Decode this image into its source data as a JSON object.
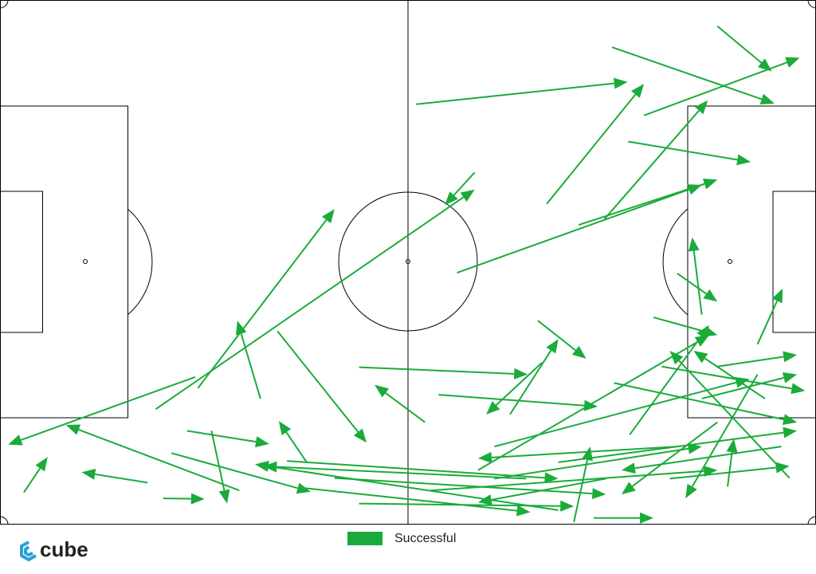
{
  "chart_data": {
    "type": "pass-map",
    "xlim": [
      0,
      120
    ],
    "ylim": [
      0,
      80
    ],
    "y_inverted": true,
    "series": [
      {
        "name": "Successful",
        "color": "#1aab3a",
        "x_start": [
          3.5,
          28.7,
          35.2,
          21.7,
          24.0,
          31.1,
          27.5,
          25.2,
          22.9,
          29.1,
          38.3,
          69.8,
          40.8,
          45.1,
          61.2,
          80.4,
          90.0,
          94.7,
          105.5,
          92.4,
          88.9,
          85.1,
          67.2,
          52.8,
          79.1,
          103.2,
          99.6,
          111.4,
          96.1,
          62.5,
          82.1,
          77.4,
          44.5,
          84.4,
          87.3,
          98.5,
          82.1,
          103.2,
          105.5,
          72.7,
          75.0,
          70.3,
          64.5,
          105.5,
          89.1,
          99.6,
          72.7,
          90.3,
          79.7,
          92.6,
          111.4,
          112.5,
          97.3,
          114.9,
          42.2,
          49.2,
          52.8,
          63.3,
          107.0,
          116.1
        ],
        "y_start": [
          75.1,
          57.5,
          74.8,
          73.6,
          76.0,
          65.7,
          65.7,
          69.1,
          62.4,
          59.2,
          60.8,
          26.3,
          50.5,
          70.5,
          15.9,
          31.1,
          7.2,
          17.6,
          4.0,
          21.6,
          33.4,
          34.3,
          41.6,
          56.0,
          48.9,
          48.0,
          41.7,
          52.5,
          48.4,
          64.4,
          77.8,
          73.0,
          74.4,
          79.6,
          79.0,
          73.0,
          70.5,
          60.8,
          55.9,
          68.1,
          63.2,
          71.7,
          60.2,
          64.4,
          73.0,
          68.1,
          73.0,
          58.4,
          55.3,
          66.3,
          57.1,
          60.8,
          55.9,
          68.1,
          70.3,
          72.9,
          76.8,
          74.8,
          74.2,
          72.9
        ],
        "x_end": [
          7.0,
          1.2,
          9.7,
          12.0,
          30.1,
          33.4,
          39.6,
          45.7,
          69.8,
          49.2,
          34.9,
          65.4,
          53.9,
          41.0,
          92.3,
          94.7,
          113.9,
          117.6,
          113.5,
          110.4,
          104.1,
          105.5,
          103.2,
          77.6,
          86.2,
          101.8,
          105.5,
          115.1,
          105.5,
          55.1,
          37.5,
          38.7,
          78.0,
          86.8,
          96.1,
          116.1,
          117.2,
          117.2,
          117.2,
          110.2,
          82.1,
          104.3,
          87.9,
          91.4,
          70.3,
          70.3,
          103.2,
          117.2,
          71.5,
          104.3,
          100.8,
          102.0,
          118.4,
          91.4,
          82.1,
          89.1,
          84.4,
          105.5,
          107.9,
          98.5
        ],
        "y_end": [
          69.7,
          67.8,
          64.8,
          72.0,
          76.1,
          76.8,
          67.7,
          75.0,
          28.9,
          31.9,
          48.9,
          31.3,
          67.5,
          64.2,
          12.5,
          12.8,
          15.8,
          8.8,
          10.9,
          24.7,
          15.3,
          27.4,
          28.2,
          57.1,
          54.7,
          36.2,
          46.0,
          44.0,
          51.1,
          58.7,
          70.8,
          71.1,
          78.1,
          68.1,
          79.0,
          71.1,
          65.7,
          57.1,
          54.1,
          57.8,
          51.7,
          51.1,
          62.0,
          75.4,
          76.6,
          69.9,
          68.1,
          64.4,
          63.2,
          49.6,
          76.0,
          53.5,
          59.6,
          71.7,
          73.0,
          75.4,
          77.2,
          71.7,
          66.9,
          53.5
        ]
      }
    ]
  },
  "branding": {
    "logo": "cube"
  }
}
